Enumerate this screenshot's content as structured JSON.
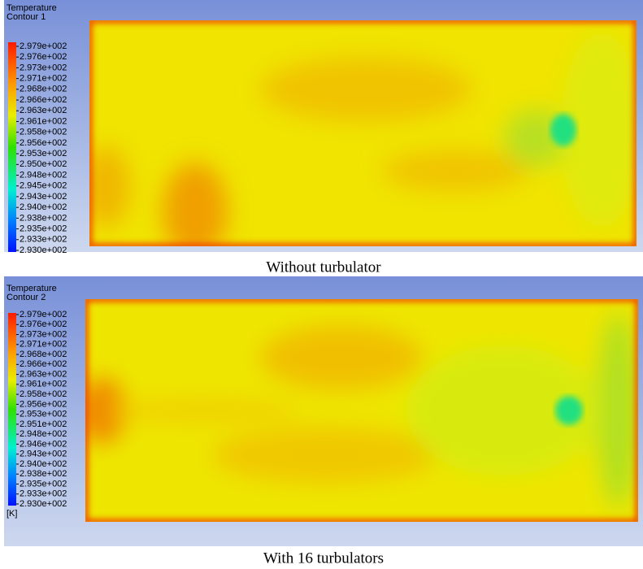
{
  "panels": [
    {
      "legend_title": [
        "Temperature",
        "Contour 1"
      ],
      "legend_labels": [
        "2.979e+002",
        "2.976e+002",
        "2.973e+002",
        "2.971e+002",
        "2.968e+002",
        "2.966e+002",
        "2.963e+002",
        "2.961e+002",
        "2.958e+002",
        "2.956e+002",
        "2.953e+002",
        "2.950e+002",
        "2.948e+002",
        "2.945e+002",
        "2.943e+002",
        "2.940e+002",
        "2.938e+002",
        "2.935e+002",
        "2.933e+002",
        "2.930e+002"
      ],
      "caption": "Without turbulator"
    },
    {
      "legend_title": [
        "Temperature",
        "Contour 2"
      ],
      "legend_labels": [
        "2.979e+002",
        "2.976e+002",
        "2.973e+002",
        "2.971e+002",
        "2.968e+002",
        "2.966e+002",
        "2.963e+002",
        "2.961e+002",
        "2.958e+002",
        "2.956e+002",
        "2.953e+002",
        "2.951e+002",
        "2.948e+002",
        "2.946e+002",
        "2.943e+002",
        "2.940e+002",
        "2.938e+002",
        "2.935e+002",
        "2.933e+002",
        "2.930e+002"
      ],
      "unit": "[K]",
      "caption": "With 16 turbulators"
    }
  ]
}
